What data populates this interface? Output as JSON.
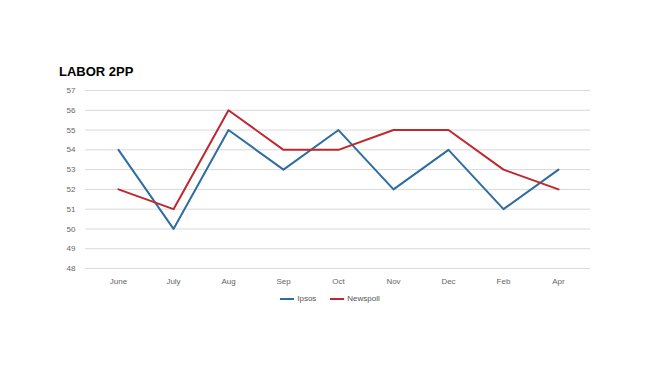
{
  "chart_data": {
    "type": "line",
    "title": "LABOR 2PP",
    "categories": [
      "June",
      "July",
      "Aug",
      "Sep",
      "Oct",
      "Nov",
      "Dec",
      "Feb",
      "Apr"
    ],
    "series": [
      {
        "name": "Ipsos",
        "color": "#2e6da4",
        "values": [
          54,
          50,
          55,
          53,
          55,
          52,
          54,
          51,
          53
        ]
      },
      {
        "name": "Newspoll",
        "color": "#c0282d",
        "values": [
          52,
          51,
          56,
          54,
          54,
          55,
          55,
          53,
          52
        ]
      }
    ],
    "ylim": [
      48,
      57
    ],
    "yticks": [
      48,
      49,
      50,
      51,
      52,
      53,
      54,
      55,
      56,
      57
    ],
    "grid": true,
    "legend": "bottom"
  }
}
